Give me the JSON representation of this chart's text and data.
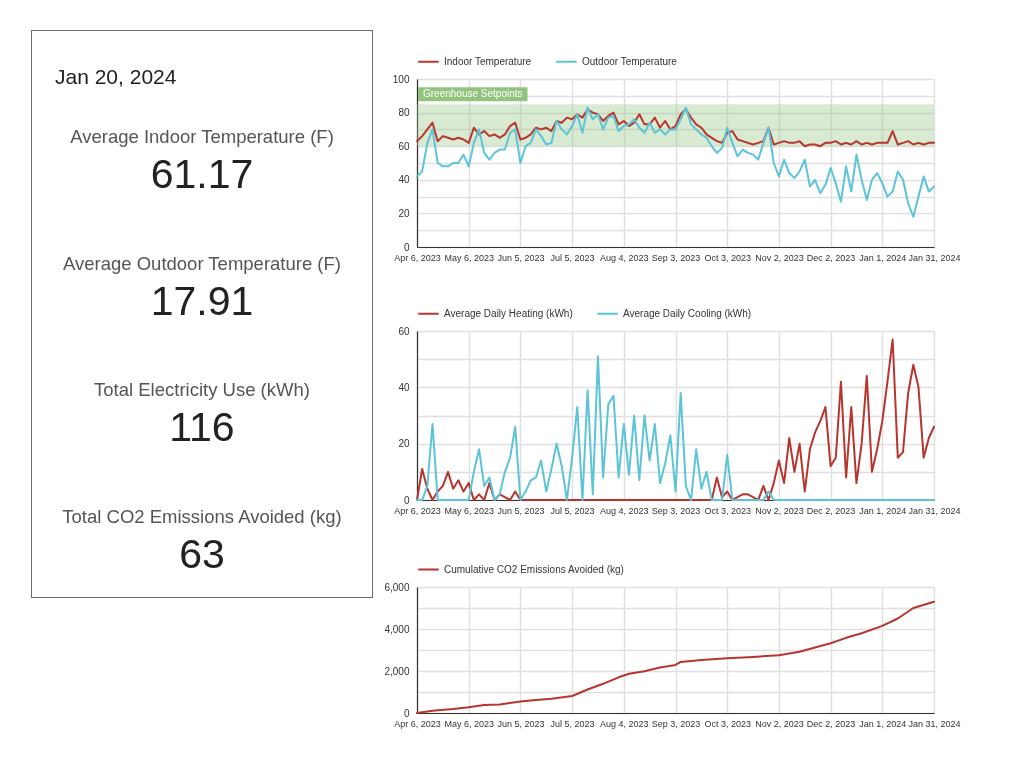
{
  "chart_data": [
    {
      "type": "other",
      "title": "Jan 20, 2024",
      "annotations": [
        "Average Indoor Temperature (F)",
        "61.17",
        "Average Outdoor Temperature (F)",
        "17.91",
        "Total Electricity Use (kWh)",
        "116",
        "Total CO2 Emissions Avoided (kg)",
        "63"
      ]
    },
    {
      "type": "line",
      "legend": "top left",
      "grid": true,
      "x": [
        "2023-04-06",
        "2023-04-09",
        "2023-04-12",
        "2023-04-15",
        "2023-04-18",
        "2023-04-21",
        "2023-04-24",
        "2023-04-27",
        "2023-04-30",
        "2023-05-03",
        "2023-05-06",
        "2023-05-09",
        "2023-05-12",
        "2023-05-15",
        "2023-05-18",
        "2023-05-21",
        "2023-05-24",
        "2023-05-27",
        "2023-05-30",
        "2023-06-02",
        "2023-06-05",
        "2023-06-08",
        "2023-06-11",
        "2023-06-14",
        "2023-06-17",
        "2023-06-20",
        "2023-06-23",
        "2023-06-26",
        "2023-06-29",
        "2023-07-02",
        "2023-07-05",
        "2023-07-08",
        "2023-07-11",
        "2023-07-14",
        "2023-07-17",
        "2023-07-20",
        "2023-07-23",
        "2023-07-26",
        "2023-07-29",
        "2023-08-01",
        "2023-08-04",
        "2023-08-07",
        "2023-08-10",
        "2023-08-13",
        "2023-08-16",
        "2023-08-19",
        "2023-08-22",
        "2023-08-25",
        "2023-08-28",
        "2023-08-31",
        "2023-09-03",
        "2023-09-06",
        "2023-09-09",
        "2023-09-12",
        "2023-09-15",
        "2023-09-18",
        "2023-09-21",
        "2023-09-24",
        "2023-09-27",
        "2023-09-30",
        "2023-10-03",
        "2023-10-06",
        "2023-10-09",
        "2023-10-12",
        "2023-10-15",
        "2023-10-18",
        "2023-10-21",
        "2023-10-24",
        "2023-10-27",
        "2023-10-30",
        "2023-11-02",
        "2023-11-05",
        "2023-11-08",
        "2023-11-11",
        "2023-11-14",
        "2023-11-17",
        "2023-11-20",
        "2023-11-23",
        "2023-11-26",
        "2023-11-29",
        "2023-12-02",
        "2023-12-05",
        "2023-12-08",
        "2023-12-11",
        "2023-12-14",
        "2023-12-17",
        "2023-12-20",
        "2023-12-23",
        "2023-12-26",
        "2023-12-29",
        "2024-01-01",
        "2024-01-04",
        "2024-01-07",
        "2024-01-10",
        "2024-01-13",
        "2024-01-16",
        "2024-01-19",
        "2024-01-22",
        "2024-01-25",
        "2024-01-28",
        "2024-01-31"
      ],
      "series": [
        {
          "name": "Indoor Temperature",
          "color": "#b8352e",
          "values": [
            63,
            66,
            70,
            74,
            63,
            66,
            65,
            64,
            65,
            64,
            62,
            71,
            67,
            69,
            66,
            67,
            65,
            67,
            72,
            74,
            64,
            65,
            67,
            71,
            70,
            71,
            69,
            75,
            74,
            77,
            76,
            79,
            77,
            82,
            80,
            79,
            75,
            78,
            80,
            73,
            75,
            72,
            74,
            79,
            73,
            73,
            77,
            71,
            75,
            70,
            72,
            79,
            82,
            77,
            73,
            71,
            67,
            65,
            63,
            62,
            68,
            69,
            64,
            63,
            62,
            61,
            62,
            63,
            71,
            61,
            62,
            63,
            62,
            62,
            63,
            60,
            61,
            61,
            60,
            62,
            62,
            63,
            61,
            62,
            61,
            63,
            61,
            62,
            61,
            62,
            62,
            62,
            69,
            61,
            62,
            63,
            61,
            62,
            61,
            62,
            62
          ]
        },
        {
          "name": "Outdoor Temperature",
          "color": "#5bc4d9",
          "values": [
            42,
            45,
            62,
            70,
            50,
            48,
            48,
            50,
            50,
            55,
            48,
            62,
            70,
            56,
            52,
            56,
            58,
            58,
            68,
            70,
            50,
            60,
            62,
            70,
            66,
            61,
            62,
            75,
            70,
            67,
            72,
            79,
            68,
            83,
            76,
            79,
            70,
            77,
            78,
            69,
            72,
            73,
            76,
            71,
            68,
            74,
            68,
            70,
            67,
            70,
            70,
            76,
            83,
            73,
            70,
            67,
            65,
            60,
            56,
            59,
            71,
            62,
            54,
            58,
            56,
            55,
            52,
            62,
            71,
            50,
            42,
            52,
            44,
            41,
            45,
            52,
            36,
            40,
            32,
            37,
            47,
            38,
            27,
            48,
            33,
            55,
            40,
            28,
            40,
            44,
            38,
            30,
            33,
            45,
            40,
            26,
            18,
            30,
            42,
            33,
            36
          ]
        }
      ],
      "xlim": [
        "2023-04-06",
        "2024-01-31"
      ],
      "xticks": [
        {
          "value": "2023-04-06",
          "label": "Apr 6, 2023"
        },
        {
          "value": "2023-05-06",
          "label": "May 6, 2023"
        },
        {
          "value": "2023-06-05",
          "label": "Jun 5, 2023"
        },
        {
          "value": "2023-07-05",
          "label": "Jul 5, 2023"
        },
        {
          "value": "2023-08-04",
          "label": "Aug 4, 2023"
        },
        {
          "value": "2023-09-03",
          "label": "Sep 3, 2023"
        },
        {
          "value": "2023-10-03",
          "label": "Oct 3, 2023"
        },
        {
          "value": "2023-11-02",
          "label": "Nov 2, 2023"
        },
        {
          "value": "2023-12-02",
          "label": "Dec 2, 2023"
        },
        {
          "value": "2024-01-01",
          "label": "Jan 1, 2024"
        },
        {
          "value": "2024-01-31",
          "label": "Jan 31, 2024"
        }
      ],
      "ylim": [
        0,
        100
      ],
      "yticks": [
        0,
        {
          "value": 10,
          "label": null
        },
        20,
        {
          "value": 30,
          "label": null
        },
        40,
        {
          "value": 50,
          "label": null
        },
        60,
        {
          "value": 70,
          "label": null
        },
        80,
        {
          "value": 90,
          "label": null
        },
        100
      ],
      "bands": [
        {
          "axis": "y",
          "from": 60,
          "to": 85,
          "label": "Greenhouse Setpoints",
          "color": "#93c47d"
        }
      ]
    },
    {
      "type": "line",
      "legend": "top left",
      "grid": true,
      "x": [
        "2023-04-06",
        "2023-04-09",
        "2023-04-12",
        "2023-04-15",
        "2023-04-18",
        "2023-04-21",
        "2023-04-24",
        "2023-04-27",
        "2023-04-30",
        "2023-05-03",
        "2023-05-06",
        "2023-05-09",
        "2023-05-12",
        "2023-05-15",
        "2023-05-18",
        "2023-05-21",
        "2023-05-24",
        "2023-05-27",
        "2023-05-30",
        "2023-06-02",
        "2023-06-05",
        "2023-06-08",
        "2023-06-11",
        "2023-06-14",
        "2023-06-17",
        "2023-06-20",
        "2023-06-23",
        "2023-06-26",
        "2023-06-29",
        "2023-07-02",
        "2023-07-05",
        "2023-07-08",
        "2023-07-11",
        "2023-07-14",
        "2023-07-17",
        "2023-07-20",
        "2023-07-23",
        "2023-07-26",
        "2023-07-29",
        "2023-08-01",
        "2023-08-04",
        "2023-08-07",
        "2023-08-10",
        "2023-08-13",
        "2023-08-16",
        "2023-08-19",
        "2023-08-22",
        "2023-08-25",
        "2023-08-28",
        "2023-08-31",
        "2023-09-03",
        "2023-09-06",
        "2023-09-09",
        "2023-09-12",
        "2023-09-15",
        "2023-09-18",
        "2023-09-21",
        "2023-09-24",
        "2023-09-27",
        "2023-09-30",
        "2023-10-03",
        "2023-10-06",
        "2023-10-09",
        "2023-10-12",
        "2023-10-15",
        "2023-10-18",
        "2023-10-21",
        "2023-10-24",
        "2023-10-27",
        "2023-10-30",
        "2023-11-02",
        "2023-11-05",
        "2023-11-08",
        "2023-11-11",
        "2023-11-14",
        "2023-11-17",
        "2023-11-20",
        "2023-11-23",
        "2023-11-26",
        "2023-11-29",
        "2023-12-02",
        "2023-12-05",
        "2023-12-08",
        "2023-12-11",
        "2023-12-14",
        "2023-12-17",
        "2023-12-20",
        "2023-12-23",
        "2023-12-26",
        "2023-12-29",
        "2024-01-01",
        "2024-01-04",
        "2024-01-07",
        "2024-01-10",
        "2024-01-13",
        "2024-01-16",
        "2024-01-19",
        "2024-01-22",
        "2024-01-25",
        "2024-01-28",
        "2024-01-31"
      ],
      "series": [
        {
          "name": "Average Daily Heating (kWh)",
          "color": "#b8352e",
          "values": [
            0,
            11,
            4,
            0,
            3,
            5,
            10,
            4,
            7,
            3,
            6,
            0,
            2,
            0,
            6,
            0,
            2,
            1,
            0,
            3,
            0,
            0,
            0,
            0,
            0,
            0,
            0,
            0,
            0,
            0,
            0,
            0,
            0,
            0,
            0,
            0,
            0,
            0,
            0,
            0,
            0,
            0,
            0,
            0,
            0,
            0,
            0,
            0,
            0,
            0,
            0,
            0,
            0,
            0,
            0,
            0,
            0,
            0,
            8,
            1,
            3,
            0,
            1,
            2,
            2,
            1,
            0,
            5,
            0,
            6,
            14,
            6,
            22,
            10,
            20,
            3,
            18,
            24,
            28,
            33,
            12,
            15,
            42,
            8,
            33,
            6,
            20,
            44,
            10,
            18,
            28,
            42,
            57,
            15,
            17,
            38,
            48,
            40,
            15,
            22,
            26
          ]
        },
        {
          "name": "Average Daily Cooling (kWh)",
          "color": "#5bc4d9",
          "values": [
            0,
            0,
            5,
            27,
            0,
            0,
            0,
            0,
            0,
            0,
            0,
            10,
            18,
            5,
            8,
            0,
            2,
            10,
            15,
            26,
            0,
            3,
            7,
            8,
            14,
            3,
            11,
            20,
            12,
            0,
            15,
            33,
            0,
            39,
            2,
            51,
            8,
            34,
            37,
            8,
            27,
            9,
            30,
            7,
            30,
            14,
            27,
            6,
            13,
            23,
            3,
            38,
            5,
            0,
            18,
            4,
            10,
            0,
            0,
            0,
            16,
            0,
            0,
            0,
            0,
            0,
            0,
            0,
            3,
            0,
            0,
            0,
            0,
            0,
            0,
            0,
            0,
            0,
            0,
            0,
            0,
            0,
            0,
            0,
            0,
            0,
            0,
            0,
            0,
            0,
            0,
            0,
            0,
            0,
            0,
            0,
            0,
            0,
            0,
            0,
            0
          ]
        }
      ],
      "xlim": [
        "2023-04-06",
        "2024-01-31"
      ],
      "xticks": [
        {
          "value": "2023-04-06",
          "label": "Apr 6, 2023"
        },
        {
          "value": "2023-05-06",
          "label": "May 6, 2023"
        },
        {
          "value": "2023-06-05",
          "label": "Jun 5, 2023"
        },
        {
          "value": "2023-07-05",
          "label": "Jul 5, 2023"
        },
        {
          "value": "2023-08-04",
          "label": "Aug 4, 2023"
        },
        {
          "value": "2023-09-03",
          "label": "Sep 3, 2023"
        },
        {
          "value": "2023-10-03",
          "label": "Oct 3, 2023"
        },
        {
          "value": "2023-11-02",
          "label": "Nov 2, 2023"
        },
        {
          "value": "2023-12-02",
          "label": "Dec 2, 2023"
        },
        {
          "value": "2024-01-01",
          "label": "Jan 1, 2024"
        },
        {
          "value": "2024-01-31",
          "label": "Jan 31, 2024"
        }
      ],
      "ylim": [
        0,
        60
      ],
      "yticks": [
        0,
        {
          "value": 10,
          "label": null
        },
        20,
        {
          "value": 30,
          "label": null
        },
        40,
        {
          "value": 50,
          "label": null
        },
        60
      ]
    },
    {
      "type": "line",
      "legend": "top left",
      "grid": true,
      "x": [
        "2023-04-06",
        "2023-04-15",
        "2023-04-27",
        "2023-05-06",
        "2023-05-15",
        "2023-05-24",
        "2023-06-05",
        "2023-06-14",
        "2023-06-23",
        "2023-07-05",
        "2023-07-14",
        "2023-07-23",
        "2023-08-01",
        "2023-08-07",
        "2023-08-16",
        "2023-08-25",
        "2023-09-03",
        "2023-09-06",
        "2023-09-18",
        "2023-10-03",
        "2023-10-18",
        "2023-11-02",
        "2023-11-14",
        "2023-12-02",
        "2023-12-11",
        "2023-12-20",
        "2024-01-01",
        "2024-01-10",
        "2024-01-19",
        "2024-01-31"
      ],
      "series": [
        {
          "name": "Cumulative CO2 Emissions Avoided (kg)",
          "color": "#b8352e",
          "values": [
            0,
            110,
            190,
            270,
            380,
            410,
            550,
            620,
            680,
            810,
            1120,
            1390,
            1700,
            1870,
            1990,
            2170,
            2290,
            2430,
            2520,
            2610,
            2670,
            2750,
            2920,
            3320,
            3580,
            3800,
            4150,
            4500,
            5000,
            5300
          ]
        }
      ],
      "xlim": [
        "2023-04-06",
        "2024-01-31"
      ],
      "xticks": [
        {
          "value": "2023-04-06",
          "label": "Apr 6, 2023"
        },
        {
          "value": "2023-05-06",
          "label": "May 6, 2023"
        },
        {
          "value": "2023-06-05",
          "label": "Jun 5, 2023"
        },
        {
          "value": "2023-07-05",
          "label": "Jul 5, 2023"
        },
        {
          "value": "2023-08-04",
          "label": "Aug 4, 2023"
        },
        {
          "value": "2023-09-03",
          "label": "Sep 3, 2023"
        },
        {
          "value": "2023-10-03",
          "label": "Oct 3, 2023"
        },
        {
          "value": "2023-11-02",
          "label": "Nov 2, 2023"
        },
        {
          "value": "2023-12-02",
          "label": "Dec 2, 2023"
        },
        {
          "value": "2024-01-01",
          "label": "Jan 1, 2024"
        },
        {
          "value": "2024-01-31",
          "label": "Jan 31, 2024"
        }
      ],
      "ylim": [
        0,
        6000
      ],
      "yticks": [
        0,
        {
          "value": 1000,
          "label": null
        },
        {
          "value": 2000,
          "label": "2,000"
        },
        {
          "value": 3000,
          "label": null
        },
        {
          "value": 4000,
          "label": "4,000"
        },
        {
          "value": 5000,
          "label": null
        },
        {
          "value": 6000,
          "label": "6,000"
        }
      ]
    }
  ]
}
